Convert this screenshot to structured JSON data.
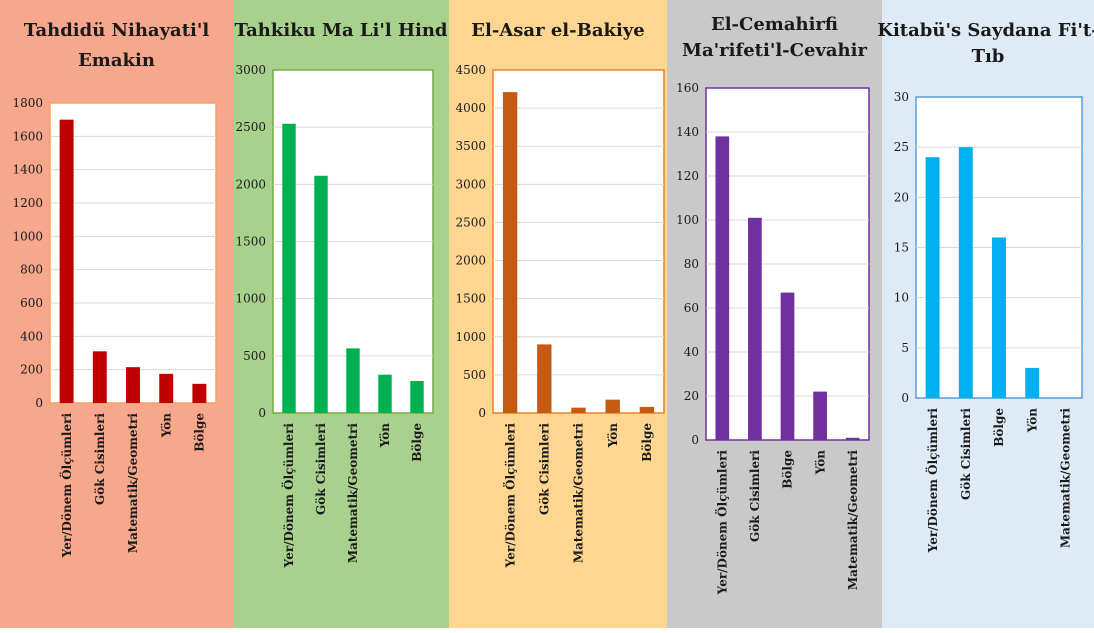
{
  "chart_data": [
    {
      "type": "bar",
      "title": "Tahdidü Nihayati'l Emakin",
      "categories": [
        "Yer/Dönem Ölçümleri",
        "Gök Cisimleri",
        "Matematik/Geometri",
        "Yön",
        "Bölge"
      ],
      "values": [
        1700,
        310,
        215,
        175,
        115
      ],
      "ylim": [
        0,
        1800
      ],
      "yticks": [
        0,
        200,
        400,
        600,
        800,
        1000,
        1200,
        1400,
        1600,
        1800
      ],
      "grid": true,
      "colors": {
        "panel": "#f7a78b",
        "bar": "#c00000",
        "frame": "#f4a460"
      }
    },
    {
      "type": "bar",
      "title": "Tahkiku Ma Li'l Hind",
      "categories": [
        "Yer/Dönem Ölçümleri",
        "Gök Cisimleri",
        "Matematik/Geometri",
        "Yön",
        "Bölge"
      ],
      "values": [
        2530,
        2075,
        565,
        335,
        280
      ],
      "ylim": [
        0,
        3000
      ],
      "yticks": [
        0,
        500,
        1000,
        1500,
        2000,
        2500,
        3000
      ],
      "grid": true,
      "colors": {
        "panel": "#a9d18e",
        "bar": "#00b050",
        "frame": "#70ad47"
      }
    },
    {
      "type": "bar",
      "title": "El-Asar el-Bakiye",
      "categories": [
        "Yer/Dönem Ölçümleri",
        "Gök Cisimleri",
        "Matematik/Geometri",
        "Yön",
        "Bölge"
      ],
      "values": [
        4210,
        900,
        70,
        175,
        80
      ],
      "ylim": [
        0,
        4500
      ],
      "yticks": [
        0,
        500,
        1000,
        1500,
        2000,
        2500,
        3000,
        3500,
        4000,
        4500
      ],
      "grid": true,
      "colors": {
        "panel": "#ffd68f",
        "bar": "#c55a11",
        "frame": "#ed7d31"
      }
    },
    {
      "type": "bar",
      "title": "El-Cemahirfi Ma'rifeti'l-Cevahir",
      "categories": [
        "Yer/Dönem Ölçümleri",
        "Gök Cisimleri",
        "Bölge",
        "Yön",
        "Matematik/Geometri"
      ],
      "values": [
        138,
        101,
        67,
        22,
        1
      ],
      "ylim": [
        0,
        160
      ],
      "yticks": [
        0,
        20,
        40,
        60,
        80,
        100,
        120,
        140,
        160
      ],
      "grid": true,
      "colors": {
        "panel": "#c9c9c9",
        "bar": "#7030a0",
        "frame": "#7030a0"
      }
    },
    {
      "type": "bar",
      "title": "Kitabü's Saydana Fi't-Tıb",
      "categories": [
        "Yer/Dönem Ölçümleri",
        "Gök Cisimleri",
        "Bölge",
        "Yön",
        "Matematik/Geometri"
      ],
      "values": [
        24,
        25,
        16,
        3,
        0
      ],
      "ylim": [
        0,
        30
      ],
      "yticks": [
        0,
        5,
        10,
        15,
        20,
        25,
        30
      ],
      "grid": true,
      "colors": {
        "panel": "#deebf7",
        "bar": "#00b0f0",
        "frame": "#5b9bd5"
      }
    }
  ]
}
